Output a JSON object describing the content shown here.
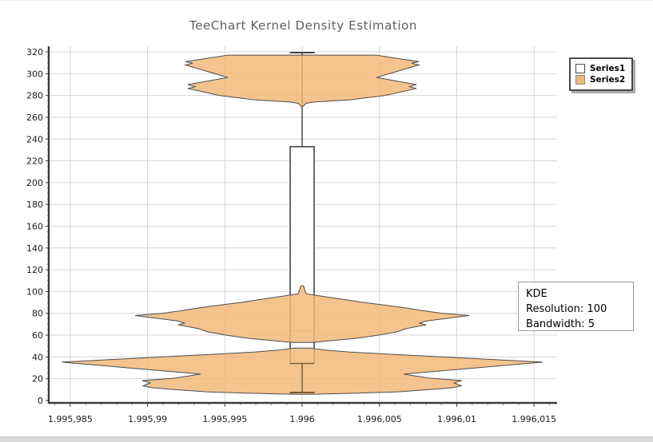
{
  "title": "TeeChart Kernel Density Estimation",
  "legend": {
    "items": [
      {
        "label": "Series1",
        "swatch_color": "#FFFFFF"
      },
      {
        "label": "Series2",
        "swatch_color": "#F2B878"
      }
    ]
  },
  "annotation": {
    "line1": "KDE",
    "line2": "Resolution: 100",
    "line3": "Bandwidth: 5"
  },
  "colors": {
    "violin_fill": "#F2B878",
    "violin_stroke": "#4E4E4E",
    "box_fill": "#FFFFFF",
    "box_stroke": "#3C3C3C",
    "grid": "#D6D6D6",
    "axis": "#3C3C3C",
    "minor_tick": "#8A8A8A",
    "overdraw_brown": "#7A5A36",
    "title_color": "#5F5F5F",
    "label_color": "#1A1A1A"
  },
  "chart_data": {
    "type": "violin+boxplot",
    "title": "TeeChart Kernel Density Estimation",
    "grid": true,
    "legend_position": "top-right",
    "x_axis": {
      "min": 1995.98366,
      "max": 1996.01649,
      "ticks": [
        {
          "value": 1995.985,
          "label": "1.995,985"
        },
        {
          "value": 1995.99,
          "label": "1.995,99"
        },
        {
          "value": 1995.995,
          "label": "1.995,995"
        },
        {
          "value": 1996.0,
          "label": "1.996"
        },
        {
          "value": 1996.005,
          "label": "1.996,005"
        },
        {
          "value": 1996.01,
          "label": "1.996,01"
        },
        {
          "value": 1996.015,
          "label": "1.996,015"
        }
      ],
      "minor_step": 0.001
    },
    "y_axis": {
      "min": -2.2,
      "max": 325.13,
      "tick_step": 20,
      "tick_labels": [
        0,
        20,
        40,
        60,
        80,
        100,
        120,
        140,
        160,
        180,
        200,
        220,
        240,
        260,
        280,
        300,
        320
      ],
      "minor_step": 5
    },
    "series": [
      {
        "name": "Series1",
        "type": "box",
        "center_x": 1996.0,
        "box_halfwidth": 0.000775,
        "cap_halfwidth": 0.0008,
        "whisker_max": 319.3,
        "q3": 233,
        "median": 64,
        "q1": 34,
        "whisker_min": 7.3
      },
      {
        "name": "Series2",
        "type": "violin_kde",
        "center_x": 1996.0,
        "kde_resolution": 100,
        "kde_bandwidth": 5,
        "clusters": [
          {
            "label": "top-cluster (~270-317)",
            "profile": [
              [
                317.0,
                0.00481
              ],
              [
                311.0,
                0.00755
              ],
              [
                309.5,
                0.00708
              ],
              [
                308.0,
                0.00755
              ],
              [
                296.5,
                0.00481
              ],
              [
                290.0,
                0.00739
              ],
              [
                288.0,
                0.00693
              ],
              [
                286.5,
                0.00739
              ],
              [
                280.0,
                0.00538
              ],
              [
                276.0,
                0.0031
              ],
              [
                274.0,
                0.00083
              ],
              [
                272.8,
                0.00026
              ],
              [
                269.8,
                4e-05
              ]
            ]
          },
          {
            "label": "middle-cluster (~53-105)",
            "profile": [
              [
                105.3,
                8e-05
              ],
              [
                103.5,
                0.00012
              ],
              [
                98.0,
                0.00026
              ],
              [
                96.0,
                0.00114
              ],
              [
                93.0,
                0.00258
              ],
              [
                90.0,
                0.00398
              ],
              [
                87.0,
                0.00569
              ],
              [
                84.5,
                0.00693
              ],
              [
                82.5,
                0.00775
              ],
              [
                80.0,
                0.00909
              ],
              [
                78.0,
                0.01081
              ],
              [
                73.0,
                0.00806
              ],
              [
                71.0,
                0.0076
              ],
              [
                69.5,
                0.00801
              ],
              [
                66.0,
                0.00672
              ],
              [
                63.0,
                0.0061
              ],
              [
                60.0,
                0.00491
              ],
              [
                57.0,
                0.00341
              ],
              [
                55.0,
                0.00191
              ],
              [
                53.3,
                0.00062
              ]
            ]
          },
          {
            "label": "bottom-cluster (~5-48)",
            "profile": [
              [
                48.2,
                0.00052
              ],
              [
                46.5,
                0.00134
              ],
              [
                44.5,
                0.0031
              ],
              [
                42.5,
                0.00569
              ],
              [
                40.5,
                0.00853
              ],
              [
                38.5,
                0.01112
              ],
              [
                36.8,
                0.01344
              ],
              [
                35.2,
                0.01556
              ],
              [
                29.5,
                0.01086
              ],
              [
                24.2,
                0.00657
              ],
              [
                20.5,
                0.00827
              ],
              [
                18.3,
                0.01034
              ],
              [
                16.2,
                0.00982
              ],
              [
                13.5,
                0.01029
              ],
              [
                11.7,
                0.00972
              ],
              [
                9.5,
                0.00776
              ],
              [
                8.0,
                0.00621
              ],
              [
                6.8,
                0.00362
              ],
              [
                6.0,
                0.00155
              ],
              [
                5.6,
                0.00041
              ]
            ]
          }
        ]
      }
    ]
  }
}
